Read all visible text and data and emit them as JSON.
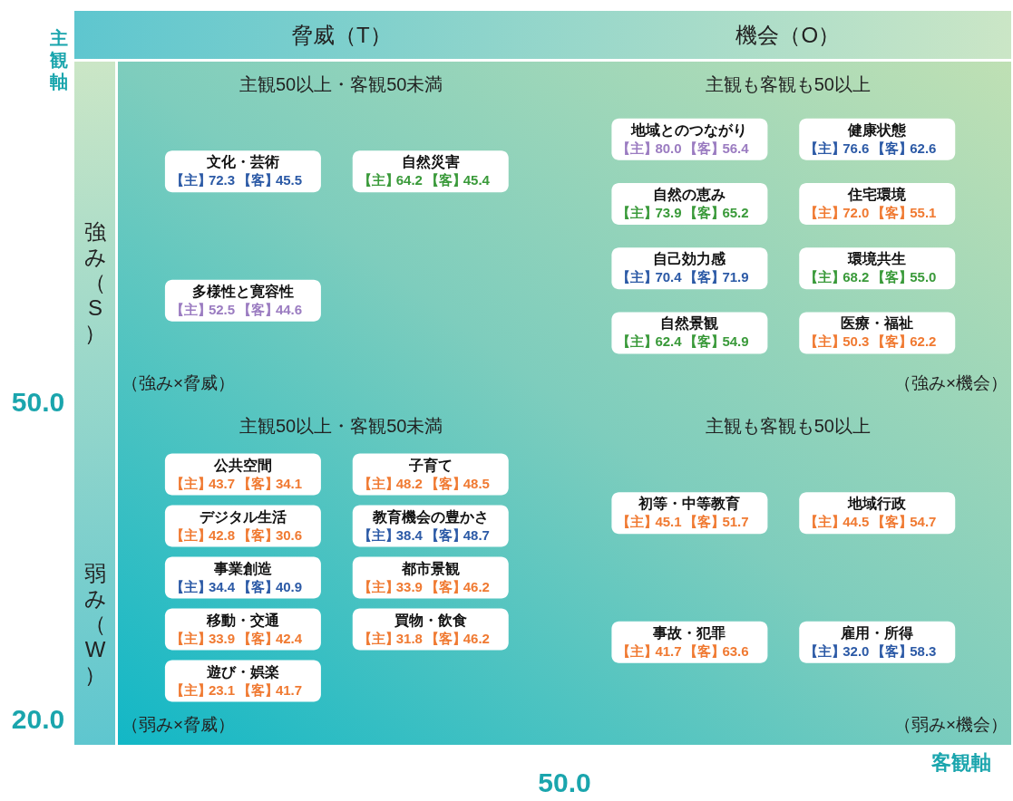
{
  "chart_data": {
    "type": "other",
    "xlabel": "客観軸",
    "ylabel": "主観軸",
    "annotations": [
      "脅威（T）",
      "機会（O）",
      "強み（S）",
      "弱み（W）",
      "主観50以上・客観50未満",
      "主観も客観も50以上",
      "主観50以上・客観50未満",
      "主観も客観も50以上",
      "（強み×脅威）",
      "（強み×機会）",
      "（弱み×脅威）",
      "（弱み×機会）",
      "50.0",
      "20.0",
      "50.0"
    ],
    "categories": [
      "文化・芸術",
      "自然災害",
      "多様性と寛容性",
      "地域とのつながり",
      "健康状態",
      "自然の恵み",
      "住宅環境",
      "自己効力感",
      "環境共生",
      "自然景観",
      "医療・福祉",
      "公共空間",
      "子育て",
      "デジタル生活",
      "教育機会の豊かさ",
      "事業創造",
      "都市景観",
      "移動・交通",
      "買物・飲食",
      "遊び・娯楽",
      "初等・中等教育",
      "地域行政",
      "事故・犯罪",
      "雇用・所得"
    ],
    "series": [
      {
        "name": "【主】",
        "values": [
          72.3,
          64.2,
          52.5,
          80.0,
          76.6,
          73.9,
          72.0,
          70.4,
          68.2,
          62.4,
          50.3,
          43.7,
          48.2,
          42.8,
          38.4,
          34.4,
          33.9,
          33.9,
          31.8,
          23.1,
          45.1,
          44.5,
          41.7,
          32.0
        ],
        "value_labels": [
          "72.3",
          "64.2",
          "52.5",
          "80.0",
          "76.6",
          "73.9",
          "72.0",
          "70.4",
          "68.2",
          "62.4",
          "50.3",
          "43.7",
          "48.2",
          "42.8",
          "38.4",
          "34.4",
          "33.9",
          "33.9",
          "31.8",
          "23.1",
          "45.1",
          "44.5",
          "41.7",
          "32.0"
        ]
      },
      {
        "name": "【客】",
        "values": [
          45.5,
          45.4,
          44.6,
          56.4,
          62.6,
          65.2,
          55.1,
          71.9,
          55.0,
          54.9,
          62.2,
          34.1,
          48.5,
          30.6,
          48.7,
          40.9,
          46.2,
          42.4,
          46.2,
          41.7,
          51.7,
          54.7,
          63.6,
          58.3
        ],
        "value_labels": [
          "45.5",
          "45.4",
          "44.6",
          "56.4",
          "62.6",
          "65.2",
          "55.1",
          "71.9",
          "55.0",
          "54.9",
          "62.2",
          "34.1",
          "48.5",
          "30.6",
          "48.7",
          "40.9",
          "46.2",
          "42.4",
          "46.2",
          "41.7",
          "51.7",
          "54.7",
          "63.6",
          "58.3"
        ]
      }
    ],
    "colors": [
      "#2c5aa6",
      "#3a9a3a",
      "#9b7cc1",
      "#9b7cc1",
      "#2c5aa6",
      "#3a9a3a",
      "#f07a32",
      "#2c5aa6",
      "#3a9a3a",
      "#3a9a3a",
      "#f07a32",
      "#f07a32",
      "#f07a32",
      "#f07a32",
      "#2c5aa6",
      "#2c5aa6",
      "#f07a32",
      "#f07a32",
      "#f07a32",
      "#f07a32",
      "#f07a32",
      "#f07a32",
      "#f07a32",
      "#2c5aa6"
    ]
  }
}
